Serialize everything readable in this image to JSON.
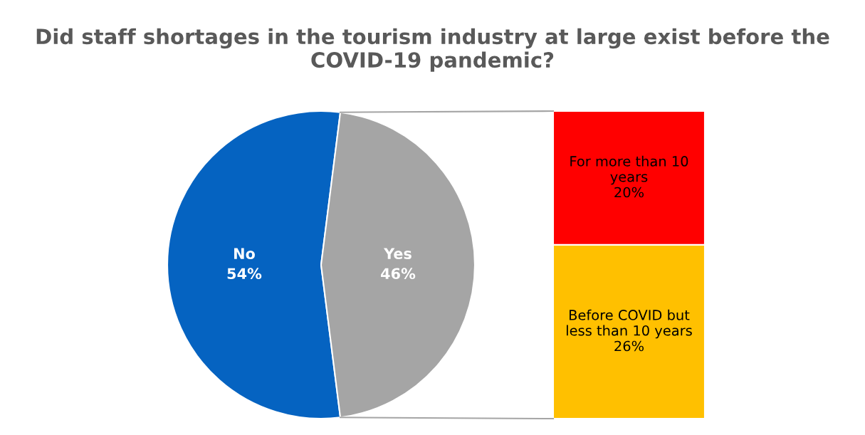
{
  "chart_data": [
    {
      "type": "pie",
      "title": "Did staff shortages in the tourism industry at large exist before the COVID-19 pandemic?",
      "categories": [
        "No",
        "Yes"
      ],
      "values": [
        54,
        46
      ],
      "colors": [
        "#0563c1",
        "#a5a5a5"
      ],
      "value_labels": [
        "54%",
        "46%"
      ]
    },
    {
      "type": "bar",
      "stacked": true,
      "categories": [
        null
      ],
      "series": [
        {
          "name": "Before COVID but less than 10 years",
          "color": "#ffc000",
          "values": [
            26
          ],
          "value_labels": [
            "26%"
          ]
        },
        {
          "name": "For more than 10 years",
          "color": "#ff0000",
          "values": [
            20
          ],
          "value_labels": [
            "20%"
          ]
        }
      ]
    }
  ]
}
